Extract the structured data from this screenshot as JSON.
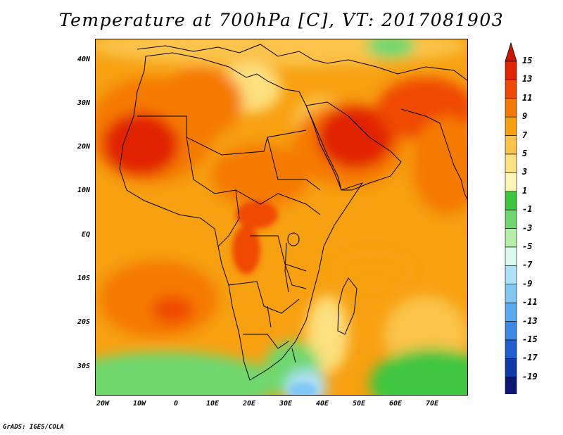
{
  "title": "Temperature at 700hPa [C], VT: 2017081903",
  "footer": "GrADS: IGES/COLA",
  "map": {
    "lat_labels": [
      "40N",
      "30N",
      "20N",
      "10N",
      "EQ",
      "10S",
      "20S",
      "30S"
    ],
    "lon_labels": [
      "20W",
      "10W",
      "0",
      "10E",
      "20E",
      "30E",
      "40E",
      "50E",
      "60E",
      "70E"
    ]
  },
  "colorbar": {
    "levels": [
      "15",
      "13",
      "11",
      "9",
      "7",
      "5",
      "3",
      "1",
      "-1",
      "-3",
      "-5",
      "-7",
      "-9",
      "-11",
      "-13",
      "-15",
      "-17",
      "-19"
    ],
    "colors": [
      "#e12300",
      "#f04a00",
      "#f57a00",
      "#f7a010",
      "#fbc34a",
      "#fde07f",
      "#fdf5b6",
      "#3fc63f",
      "#6ed86e",
      "#b6f0a8",
      "#dafaf0",
      "#aee0f7",
      "#82c8f5",
      "#5aaaf0",
      "#3c8ae6",
      "#1f5fd0",
      "#0f3aa8",
      "#0b1770"
    ],
    "top_arrow_color": "#cc1800",
    "bottom_arrow_color": "#e3e0ff"
  }
}
